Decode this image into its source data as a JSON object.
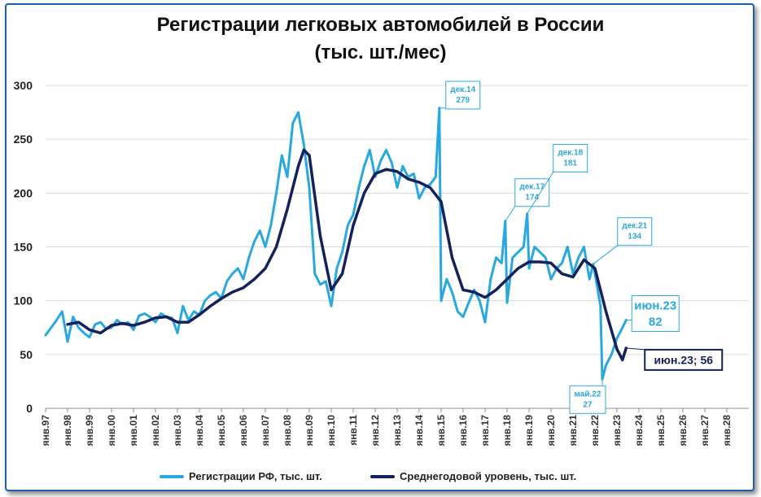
{
  "chart_data": {
    "type": "line",
    "title_line1": "Регистрации легковых автомобилей в России",
    "title_line2": "(тыс. шт./мес)",
    "xlabel": "",
    "ylabel": "",
    "ylim": [
      0,
      300
    ],
    "y_ticks": [
      "0",
      "50",
      "100",
      "150",
      "200",
      "250",
      "300"
    ],
    "x_tick_labels": [
      "янв.97",
      "янв.98",
      "янв.99",
      "янв.00",
      "янв.01",
      "янв.02",
      "янв.03",
      "янв.04",
      "янв.05",
      "янв.06",
      "янв.07",
      "янв.08",
      "янв.09",
      "янв.10",
      "янв.11",
      "янв.12",
      "янв.13",
      "янв.14",
      "янв.15",
      "янв.16",
      "янв.17",
      "янв.18",
      "янв.19",
      "янв.20",
      "янв.21",
      "янв.22",
      "янв.23",
      "янв.24",
      "янв.25",
      "янв.26",
      "янв.27",
      "янв.28"
    ],
    "x_range": [
      1997.0,
      2029.0
    ],
    "grid": "horizontal",
    "legend_position": "bottom",
    "series": [
      {
        "name": "Регистрации РФ, тыс. шт.",
        "color": "#29a8e0",
        "x": [
          1997.0,
          1997.25,
          1997.5,
          1997.75,
          1998.0,
          1998.25,
          1998.5,
          1998.75,
          1999.0,
          1999.25,
          1999.5,
          1999.75,
          2000.0,
          2000.25,
          2000.5,
          2000.75,
          2001.0,
          2001.25,
          2001.5,
          2001.75,
          2002.0,
          2002.25,
          2002.5,
          2002.75,
          2003.0,
          2003.25,
          2003.5,
          2003.75,
          2004.0,
          2004.25,
          2004.5,
          2004.75,
          2005.0,
          2005.25,
          2005.5,
          2005.75,
          2006.0,
          2006.25,
          2006.5,
          2006.75,
          2007.0,
          2007.25,
          2007.5,
          2007.75,
          2008.0,
          2008.25,
          2008.5,
          2008.75,
          2009.0,
          2009.25,
          2009.5,
          2009.75,
          2010.0,
          2010.25,
          2010.5,
          2010.75,
          2011.0,
          2011.25,
          2011.5,
          2011.75,
          2012.0,
          2012.25,
          2012.5,
          2012.75,
          2013.0,
          2013.25,
          2013.5,
          2013.75,
          2014.0,
          2014.25,
          2014.5,
          2014.75,
          2014.917,
          2015.0,
          2015.25,
          2015.5,
          2015.75,
          2016.0,
          2016.25,
          2016.5,
          2016.75,
          2017.0,
          2017.25,
          2017.5,
          2017.75,
          2017.917,
          2018.0,
          2018.25,
          2018.5,
          2018.75,
          2018.917,
          2019.0,
          2019.25,
          2019.5,
          2019.75,
          2020.0,
          2020.25,
          2020.5,
          2020.75,
          2021.0,
          2021.25,
          2021.5,
          2021.75,
          2021.917,
          2022.0,
          2022.25,
          2022.333,
          2022.5,
          2022.75,
          2023.0,
          2023.25,
          2023.417
        ],
        "values": [
          68,
          75,
          82,
          90,
          62,
          85,
          75,
          70,
          66,
          78,
          80,
          74,
          75,
          82,
          78,
          80,
          73,
          86,
          88,
          85,
          80,
          88,
          85,
          84,
          70,
          95,
          82,
          90,
          87,
          100,
          105,
          108,
          102,
          118,
          125,
          130,
          120,
          140,
          155,
          165,
          150,
          170,
          200,
          235,
          215,
          265,
          275,
          245,
          205,
          125,
          115,
          118,
          95,
          130,
          145,
          170,
          180,
          205,
          225,
          240,
          215,
          230,
          240,
          228,
          205,
          225,
          215,
          218,
          195,
          205,
          208,
          215,
          279,
          100,
          120,
          108,
          90,
          85,
          98,
          110,
          100,
          80,
          120,
          140,
          135,
          174,
          98,
          140,
          145,
          150,
          181,
          130,
          150,
          145,
          140,
          120,
          130,
          135,
          150,
          125,
          140,
          150,
          120,
          134,
          125,
          95,
          27,
          40,
          50,
          65,
          75,
          82
        ]
      },
      {
        "name": "Среднегодовой уровень, тыс. шт.",
        "color": "#14215a",
        "x": [
          1998.0,
          1998.5,
          1999.0,
          1999.5,
          2000.0,
          2000.5,
          2001.0,
          2001.5,
          2002.0,
          2002.5,
          2003.0,
          2003.5,
          2004.0,
          2004.5,
          2005.0,
          2005.5,
          2006.0,
          2006.5,
          2007.0,
          2007.5,
          2008.0,
          2008.5,
          2008.75,
          2009.0,
          2009.5,
          2010.0,
          2010.5,
          2011.0,
          2011.5,
          2012.0,
          2012.5,
          2013.0,
          2013.5,
          2014.0,
          2014.5,
          2015.0,
          2015.5,
          2016.0,
          2016.5,
          2017.0,
          2017.5,
          2018.0,
          2018.5,
          2019.0,
          2019.5,
          2020.0,
          2020.5,
          2021.0,
          2021.5,
          2022.0,
          2022.5,
          2023.0,
          2023.25,
          2023.417
        ],
        "values": [
          78,
          80,
          73,
          70,
          77,
          79,
          77,
          80,
          84,
          85,
          80,
          80,
          87,
          95,
          102,
          108,
          112,
          120,
          130,
          150,
          185,
          225,
          240,
          235,
          160,
          110,
          125,
          170,
          200,
          218,
          222,
          220,
          213,
          210,
          205,
          192,
          140,
          110,
          108,
          103,
          110,
          120,
          130,
          136,
          136,
          135,
          125,
          122,
          138,
          130,
          90,
          55,
          45,
          56
        ]
      }
    ],
    "annotations": [
      {
        "x": 2014.917,
        "value": 279,
        "line1": "дек.14",
        "line2": "279"
      },
      {
        "x": 2017.917,
        "value": 174,
        "line1": "дек.17",
        "line2": "174"
      },
      {
        "x": 2018.917,
        "value": 181,
        "line1": "дек.18",
        "line2": "181"
      },
      {
        "x": 2021.917,
        "value": 134,
        "line1": "дек.21",
        "line2": "134"
      },
      {
        "x": 2022.333,
        "value": 27,
        "line1": "май.22",
        "line2": "27"
      },
      {
        "x": 2023.417,
        "value": 82,
        "line1": "июн.23",
        "line2": "82"
      },
      {
        "x": 2023.417,
        "value": 56,
        "line1": "июн.23; 56",
        "line2": ""
      }
    ]
  }
}
